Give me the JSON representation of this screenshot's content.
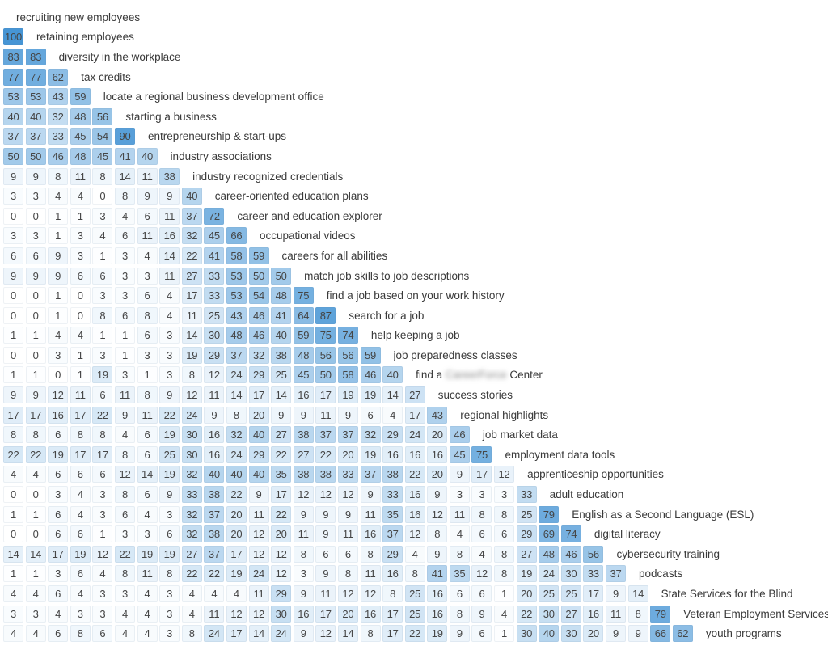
{
  "style": {
    "cell_max_color": "#4695d5",
    "cell_min_color": "#ffffff",
    "number_text_color": "#454545",
    "label_text_color": "#3a3a3a",
    "background_color": "#ffffff"
  },
  "chart_data": {
    "type": "heatmap",
    "layout": "lower-triangular matrix; each row label is also the column topic in the same order; values shown inside cells",
    "value_range": [
      0,
      100
    ],
    "color_scale": {
      "min_color": "#ffffff",
      "max_color": "#4695d5",
      "mapping": "background opacity = value / 100 over white"
    },
    "grid": false,
    "legend": false,
    "title": "",
    "rows": [
      {
        "label": "recruiting new employees",
        "values": []
      },
      {
        "label": "retaining employees",
        "values": [
          100
        ]
      },
      {
        "label": "diversity in the workplace",
        "values": [
          83,
          83
        ]
      },
      {
        "label": "tax credits",
        "values": [
          77,
          77,
          62
        ]
      },
      {
        "label": "locate a regional business development office",
        "values": [
          53,
          53,
          43,
          59
        ]
      },
      {
        "label": "starting a business",
        "values": [
          40,
          40,
          32,
          48,
          56
        ]
      },
      {
        "label": "entrepreneurship & start-ups",
        "values": [
          37,
          37,
          33,
          45,
          54,
          90
        ]
      },
      {
        "label": "industry associations",
        "values": [
          50,
          50,
          46,
          48,
          45,
          41,
          40
        ]
      },
      {
        "label": "industry recognized credentials",
        "values": [
          9,
          9,
          8,
          11,
          8,
          14,
          11,
          38
        ]
      },
      {
        "label": "career-oriented education plans",
        "values": [
          3,
          3,
          4,
          4,
          0,
          8,
          9,
          9,
          40
        ]
      },
      {
        "label": "career and education explorer",
        "values": [
          0,
          0,
          1,
          1,
          3,
          4,
          6,
          11,
          37,
          72
        ]
      },
      {
        "label": "occupational videos",
        "values": [
          3,
          3,
          1,
          3,
          4,
          6,
          11,
          16,
          32,
          45,
          66
        ]
      },
      {
        "label": "careers for all abilities",
        "values": [
          6,
          6,
          9,
          3,
          1,
          3,
          4,
          14,
          22,
          41,
          58,
          59
        ]
      },
      {
        "label": "match job skills to job descriptions",
        "values": [
          9,
          9,
          9,
          6,
          6,
          3,
          3,
          11,
          27,
          33,
          53,
          50,
          50
        ]
      },
      {
        "label": "find a job based on your work history",
        "values": [
          0,
          0,
          1,
          0,
          3,
          3,
          6,
          4,
          17,
          33,
          53,
          54,
          48,
          75
        ]
      },
      {
        "label": "search for a job",
        "values": [
          0,
          0,
          1,
          0,
          8,
          6,
          8,
          4,
          11,
          25,
          43,
          46,
          41,
          64,
          87
        ]
      },
      {
        "label": "help keeping a job",
        "values": [
          1,
          1,
          4,
          4,
          1,
          1,
          6,
          3,
          14,
          30,
          48,
          46,
          40,
          59,
          75,
          74
        ]
      },
      {
        "label": "job preparedness classes",
        "values": [
          0,
          0,
          3,
          1,
          3,
          1,
          3,
          3,
          19,
          29,
          37,
          32,
          38,
          48,
          56,
          56,
          59
        ]
      },
      {
        "label": "find a ███ Center",
        "label_prefix": "find a ",
        "blurred_text": "CareerForce",
        "label_suffix": " Center",
        "values": [
          1,
          1,
          0,
          1,
          19,
          3,
          1,
          3,
          8,
          12,
          24,
          29,
          25,
          45,
          50,
          58,
          46,
          40
        ]
      },
      {
        "label": "success stories",
        "values": [
          9,
          9,
          12,
          11,
          6,
          11,
          8,
          9,
          12,
          11,
          14,
          17,
          14,
          16,
          17,
          19,
          19,
          14,
          27
        ]
      },
      {
        "label": "regional highlights",
        "values": [
          17,
          17,
          16,
          17,
          22,
          9,
          11,
          22,
          24,
          9,
          8,
          20,
          9,
          9,
          11,
          9,
          6,
          4,
          17,
          43
        ]
      },
      {
        "label": "job market data",
        "values": [
          8,
          8,
          6,
          8,
          8,
          4,
          6,
          19,
          30,
          16,
          32,
          40,
          27,
          38,
          37,
          37,
          32,
          29,
          24,
          20,
          46
        ]
      },
      {
        "label": "employment data tools",
        "values": [
          22,
          22,
          19,
          17,
          17,
          8,
          6,
          25,
          30,
          16,
          24,
          29,
          22,
          27,
          22,
          20,
          19,
          16,
          16,
          16,
          45,
          75
        ]
      },
      {
        "label": "apprenticeship opportunities",
        "values": [
          4,
          4,
          6,
          6,
          6,
          12,
          14,
          19,
          32,
          40,
          40,
          40,
          35,
          38,
          38,
          33,
          37,
          38,
          22,
          20,
          9,
          17,
          12
        ]
      },
      {
        "label": "adult education",
        "values": [
          0,
          0,
          3,
          4,
          3,
          8,
          6,
          9,
          33,
          38,
          22,
          9,
          17,
          12,
          12,
          12,
          9,
          33,
          16,
          9,
          3,
          3,
          3,
          33
        ]
      },
      {
        "label": "English as a Second Language (ESL)",
        "values": [
          1,
          1,
          6,
          4,
          3,
          6,
          4,
          3,
          32,
          37,
          20,
          11,
          22,
          9,
          9,
          9,
          11,
          35,
          16,
          12,
          11,
          8,
          8,
          25,
          79
        ]
      },
      {
        "label": "digital literacy",
        "values": [
          0,
          0,
          6,
          6,
          1,
          3,
          3,
          6,
          32,
          38,
          20,
          12,
          20,
          11,
          9,
          11,
          16,
          37,
          12,
          8,
          4,
          6,
          6,
          29,
          69,
          74
        ]
      },
      {
        "label": "cybersecurity training",
        "values": [
          14,
          14,
          17,
          19,
          12,
          22,
          19,
          19,
          27,
          37,
          17,
          12,
          12,
          8,
          6,
          6,
          8,
          29,
          4,
          9,
          8,
          4,
          8,
          27,
          48,
          46,
          56
        ]
      },
      {
        "label": "podcasts",
        "values": [
          1,
          1,
          3,
          6,
          4,
          8,
          11,
          8,
          22,
          22,
          19,
          24,
          12,
          3,
          9,
          8,
          11,
          16,
          8,
          41,
          35,
          12,
          8,
          19,
          24,
          30,
          33,
          37
        ]
      },
      {
        "label": "State Services for the Blind",
        "values": [
          4,
          4,
          6,
          4,
          3,
          3,
          4,
          3,
          4,
          4,
          4,
          11,
          29,
          9,
          11,
          12,
          12,
          8,
          25,
          16,
          6,
          6,
          1,
          20,
          25,
          25,
          17,
          9,
          14
        ]
      },
      {
        "label": "Veteran Employment Services",
        "values": [
          3,
          3,
          4,
          3,
          3,
          4,
          4,
          3,
          4,
          11,
          12,
          12,
          30,
          16,
          17,
          20,
          16,
          17,
          25,
          16,
          8,
          9,
          4,
          22,
          30,
          27,
          16,
          11,
          8,
          79
        ]
      },
      {
        "label": "youth programs",
        "values": [
          4,
          4,
          6,
          8,
          6,
          4,
          4,
          3,
          8,
          24,
          17,
          14,
          24,
          9,
          12,
          14,
          8,
          17,
          22,
          19,
          9,
          6,
          1,
          30,
          40,
          30,
          20,
          9,
          9,
          66,
          62
        ]
      }
    ]
  }
}
